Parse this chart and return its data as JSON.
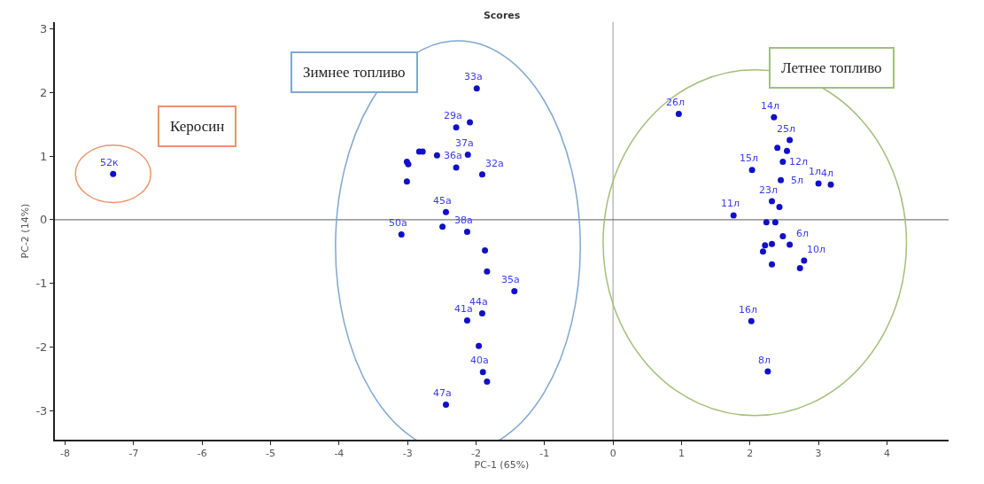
{
  "chart_data": {
    "type": "scatter",
    "title": "Scores",
    "xlabel": "PC-1 (65%)",
    "ylabel": "PC-2 (14%)",
    "xlim": [
      -8.15,
      4.9
    ],
    "ylim": [
      -3.45,
      3.1
    ],
    "xticks": [
      -8,
      -7,
      -6,
      -5,
      -4,
      -3,
      -2,
      -1,
      0,
      1,
      2,
      3,
      4
    ],
    "yticks": [
      -3,
      -2,
      -1,
      0,
      1,
      2,
      3
    ],
    "grid": false,
    "marker": "circle",
    "ref_lines": [
      {
        "axis": "x",
        "value": 0,
        "color": "#9a9a9a"
      },
      {
        "axis": "y",
        "value": 0,
        "color": "#5a5a5a"
      }
    ],
    "series": [
      {
        "color": "#1010c8",
        "x": [
          -7.3
        ],
        "values": [
          0.72
        ]
      },
      {
        "color": "#1010c8",
        "x": [
          -1.99,
          -2.09,
          -2.29,
          -2.78,
          -2.83,
          -2.57,
          -2.12,
          -2.29,
          -1.91,
          -3.01,
          -2.99,
          -3.01,
          -2.44,
          -3.09,
          -2.49,
          -2.13,
          -1.87,
          -1.84,
          -1.44,
          -1.91,
          -2.13,
          -1.96,
          -1.9,
          -1.84,
          -2.44
        ],
        "values": [
          2.06,
          1.53,
          1.45,
          1.07,
          1.07,
          1.01,
          1.02,
          0.82,
          0.71,
          0.91,
          0.87,
          0.6,
          0.12,
          -0.23,
          -0.11,
          -0.19,
          -0.48,
          -0.81,
          -1.12,
          -1.47,
          -1.58,
          -1.98,
          -2.39,
          -2.54,
          -2.9
        ]
      },
      {
        "color": "#1010c8",
        "x": [
          0.96,
          2.35,
          2.4,
          2.54,
          2.58,
          2.48,
          2.03,
          3.0,
          3.18,
          2.45,
          2.32,
          2.43,
          1.76,
          2.48,
          2.58,
          2.32,
          2.22,
          2.19,
          2.37,
          2.24,
          2.79,
          2.73,
          2.32,
          2.02,
          2.26
        ],
        "values": [
          1.66,
          1.61,
          1.13,
          1.08,
          1.25,
          0.91,
          0.78,
          0.57,
          0.55,
          0.62,
          0.29,
          0.2,
          0.07,
          -0.26,
          -0.39,
          -0.38,
          -0.4,
          -0.5,
          -0.04,
          -0.04,
          -0.64,
          -0.76,
          -0.7,
          -1.59,
          -2.38
        ]
      }
    ],
    "annotations": [
      "Керосин",
      "Зимнее топливо",
      "Летнее топливо",
      {
        "text": "52к",
        "x": -7.3,
        "y": 0.72
      },
      {
        "text": "33а",
        "x": -1.99,
        "y": 2.06
      },
      {
        "text": "29а",
        "x": -2.29,
        "y": 1.45
      },
      {
        "text": "37а",
        "x": -2.12,
        "y": 1.02
      },
      {
        "text": "36а",
        "x": -2.29,
        "y": 0.82
      },
      {
        "text": "32а",
        "x": -1.91,
        "y": 0.71
      },
      {
        "text": "45а",
        "x": -2.44,
        "y": 0.12
      },
      {
        "text": "50а",
        "x": -3.09,
        "y": -0.23
      },
      {
        "text": "38а",
        "x": -2.13,
        "y": -0.19
      },
      {
        "text": "35а",
        "x": -1.44,
        "y": -1.12
      },
      {
        "text": "44а",
        "x": -1.91,
        "y": -1.47
      },
      {
        "text": "41а",
        "x": -2.13,
        "y": -1.58
      },
      {
        "text": "40а",
        "x": -1.9,
        "y": -2.39
      },
      {
        "text": "47а",
        "x": -2.44,
        "y": -2.9
      },
      {
        "text": "26л",
        "x": 0.96,
        "y": 1.66
      },
      {
        "text": "14л",
        "x": 2.35,
        "y": 1.61
      },
      {
        "text": "25л",
        "x": 2.58,
        "y": 1.25
      },
      {
        "text": "15л",
        "x": 2.03,
        "y": 0.78
      },
      {
        "text": "12л",
        "x": 2.48,
        "y": 0.91
      },
      {
        "text": "1л",
        "x": 3.0,
        "y": 0.57
      },
      {
        "text": "4л",
        "x": 3.18,
        "y": 0.55
      },
      {
        "text": "5л",
        "x": 2.45,
        "y": 0.62
      },
      {
        "text": "23л",
        "x": 2.32,
        "y": 0.29
      },
      {
        "text": "11л",
        "x": 1.76,
        "y": 0.07
      },
      {
        "text": "6л",
        "x": 2.58,
        "y": -0.39
      },
      {
        "text": "10л",
        "x": 2.79,
        "y": -0.64
      },
      {
        "text": "16л",
        "x": 2.02,
        "y": -1.59
      },
      {
        "text": "8л",
        "x": 2.26,
        "y": -2.38
      }
    ]
  }
}
